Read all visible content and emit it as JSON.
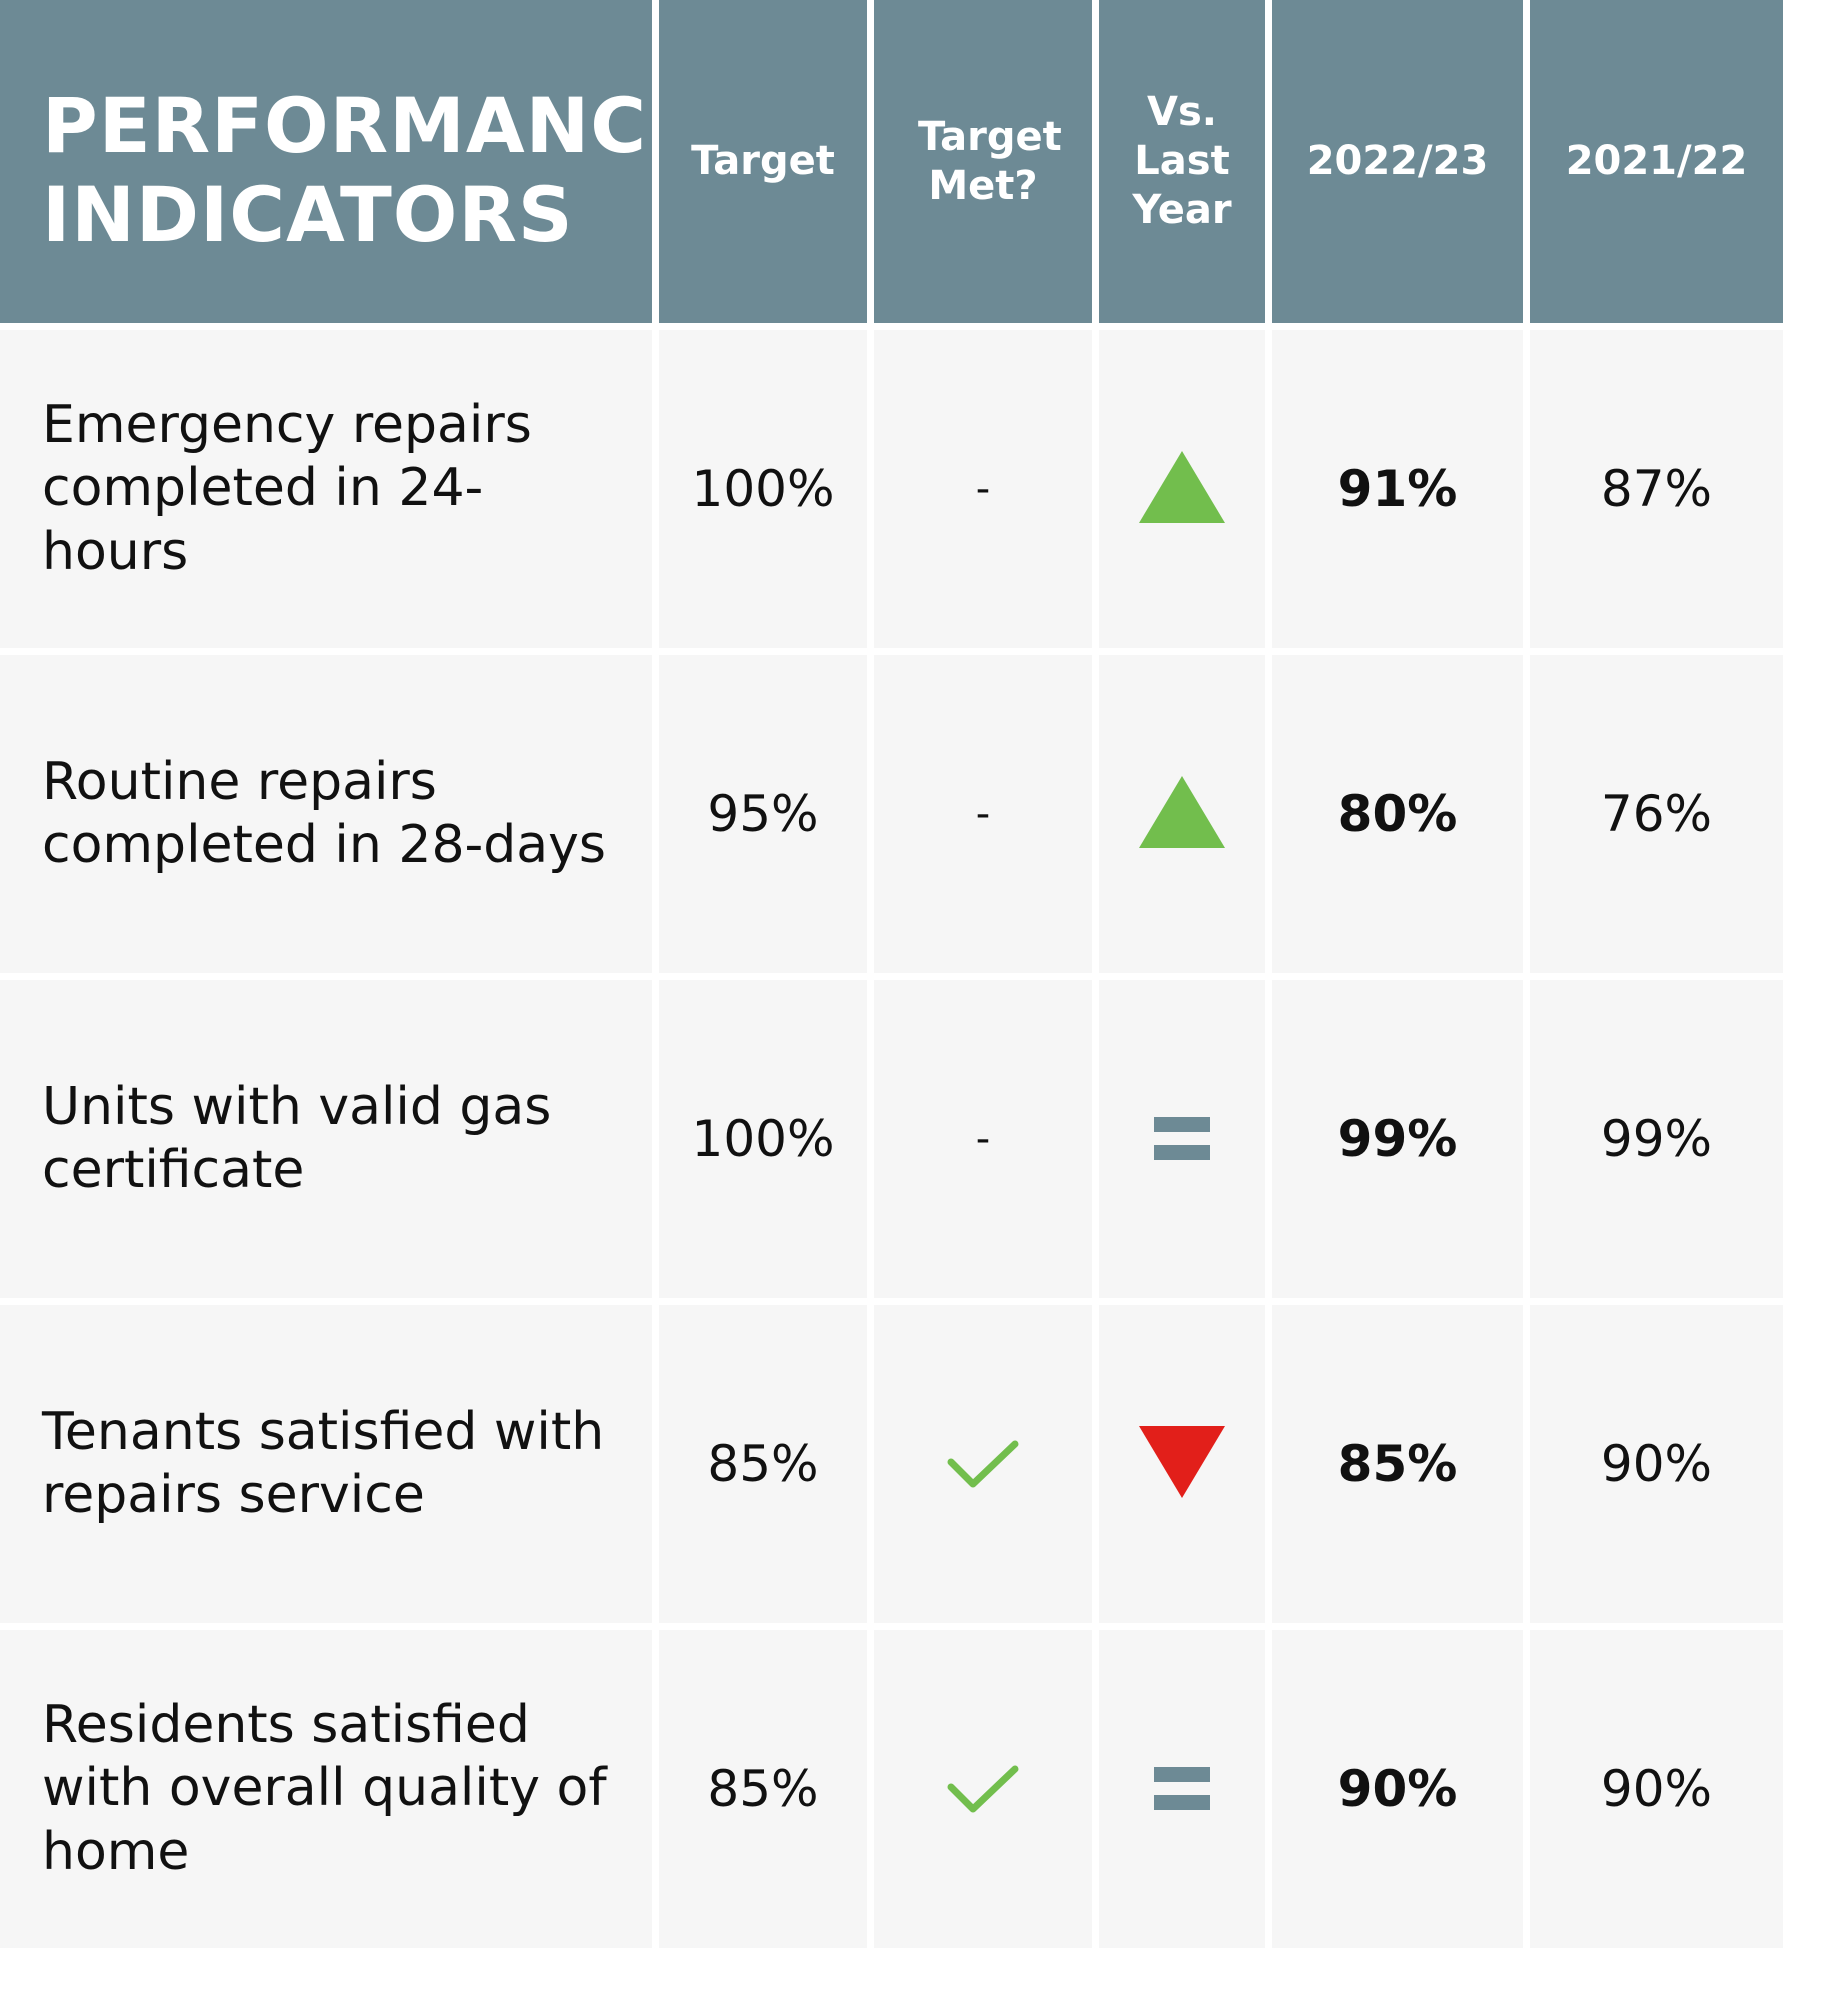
{
  "chart_data": {
    "type": "table",
    "title": "PERFORMANCE INDICATORS",
    "columns": [
      "Target",
      "Target Met?",
      "Vs. Last Year",
      "2022/23",
      "2021/22"
    ],
    "rows": [
      {
        "label": "Emergency repairs completed in 24-hours",
        "target": "100%",
        "target_met": "-",
        "target_met_icon": "none",
        "vs_last_year": "up",
        "y2022_23": "91%",
        "y2021_22": "87%"
      },
      {
        "label": "Routine repairs completed in 28-days",
        "target": "95%",
        "target_met": "-",
        "target_met_icon": "none",
        "vs_last_year": "up",
        "y2022_23": "80%",
        "y2021_22": "76%"
      },
      {
        "label": "Units with valid gas certificate",
        "target": "100%",
        "target_met": "-",
        "target_met_icon": "none",
        "vs_last_year": "same",
        "y2022_23": "99%",
        "y2021_22": "99%"
      },
      {
        "label": "Tenants satisfied with repairs service",
        "target": "85%",
        "target_met": "",
        "target_met_icon": "check-icon",
        "vs_last_year": "down",
        "y2022_23": "85%",
        "y2021_22": "90%"
      },
      {
        "label": "Residents satisfied with overall quality of home",
        "target": "85%",
        "target_met": "",
        "target_met_icon": "check-icon",
        "vs_last_year": "same",
        "y2022_23": "90%",
        "y2021_22": "90%"
      }
    ]
  },
  "colors": {
    "header": "#6d8a95",
    "up": "#72be4d",
    "down": "#e21f1a",
    "same": "#6d8a95",
    "check": "#72be4d",
    "cell": "#f6f6f6"
  }
}
